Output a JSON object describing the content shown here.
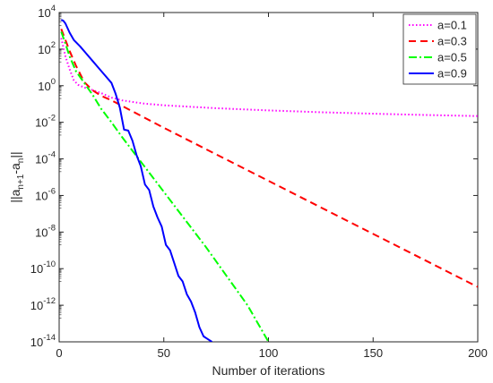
{
  "chart_data": {
    "type": "line",
    "title": "",
    "xlabel": "Number of iterations",
    "ylabel_main": "||a",
    "ylabel_sub1": "n+1",
    "ylabel_mid": "-a",
    "ylabel_sub2": "n",
    "ylabel_end": "||",
    "xlim": [
      0,
      200
    ],
    "ylim": [
      1e-14,
      10000.0
    ],
    "yscale": "log",
    "grid": false,
    "legend_position": "top-right",
    "x_ticks": [
      {
        "value": 0,
        "label": "0"
      },
      {
        "value": 50,
        "label": "50"
      },
      {
        "value": 100,
        "label": "100"
      },
      {
        "value": 150,
        "label": "150"
      },
      {
        "value": 200,
        "label": "200"
      }
    ],
    "y_ticks": [
      {
        "exp": 4,
        "base": "10",
        "sup": "4"
      },
      {
        "exp": 2,
        "base": "10",
        "sup": "2"
      },
      {
        "exp": 0,
        "base": "10",
        "sup": "0"
      },
      {
        "exp": -2,
        "base": "10",
        "sup": "-2"
      },
      {
        "exp": -4,
        "base": "10",
        "sup": "-4"
      },
      {
        "exp": -6,
        "base": "10",
        "sup": "-6"
      },
      {
        "exp": -8,
        "base": "10",
        "sup": "-8"
      },
      {
        "exp": -10,
        "base": "10",
        "sup": "-10"
      },
      {
        "exp": -12,
        "base": "10",
        "sup": "-12"
      },
      {
        "exp": -14,
        "base": "10",
        "sup": "-14"
      }
    ],
    "series": [
      {
        "name": "a=0.1",
        "color": "#ff00ff",
        "dash": "dotted",
        "x": [
          1,
          3,
          5,
          7,
          9,
          12,
          15,
          20,
          25,
          30,
          40,
          50,
          75,
          100,
          125,
          150,
          175,
          200
        ],
        "log10y": [
          2.6,
          1.6,
          0.9,
          0.3,
          0.05,
          -0.1,
          -0.2,
          -0.4,
          -0.65,
          -0.8,
          -0.97,
          -1.07,
          -1.23,
          -1.35,
          -1.45,
          -1.53,
          -1.6,
          -1.66
        ]
      },
      {
        "name": "a=0.3",
        "color": "#ff0000",
        "dash": "dashed",
        "x": [
          1,
          3,
          5,
          8,
          12,
          16,
          20,
          25,
          30,
          50,
          100,
          150,
          200
        ],
        "log10y": [
          3.1,
          2.5,
          1.9,
          1.1,
          0.2,
          -0.25,
          -0.55,
          -0.8,
          -1.1,
          -2.3,
          -5.2,
          -8.1,
          -11.0
        ]
      },
      {
        "name": "a=0.5",
        "color": "#00ff00",
        "dash": "dashdot",
        "x": [
          1,
          3,
          5,
          8,
          12,
          16,
          20,
          25,
          30,
          40,
          50,
          60,
          70,
          80,
          90,
          100
        ],
        "log10y": [
          2.95,
          2.3,
          1.6,
          0.8,
          0.15,
          -0.5,
          -1.25,
          -2.0,
          -2.8,
          -4.3,
          -5.8,
          -7.3,
          -8.8,
          -10.4,
          -12.0,
          -14.0
        ]
      },
      {
        "name": "a=0.9",
        "color": "#0000ff",
        "dash": "solid",
        "x": [
          1,
          2,
          3,
          5,
          7,
          10,
          13,
          16,
          19,
          22,
          25,
          27,
          29,
          31,
          33,
          35,
          37,
          39,
          41,
          43,
          45,
          47,
          49,
          51,
          53,
          55,
          57,
          59,
          61,
          63,
          65,
          67,
          69,
          71,
          73
        ],
        "log10y": [
          3.6,
          3.55,
          3.4,
          2.9,
          2.5,
          2.15,
          1.75,
          1.35,
          0.95,
          0.55,
          0.15,
          -0.45,
          -1.2,
          -2.4,
          -2.45,
          -3.0,
          -3.8,
          -4.4,
          -5.4,
          -5.7,
          -6.6,
          -7.2,
          -7.7,
          -8.7,
          -9.0,
          -9.7,
          -10.4,
          -10.7,
          -11.4,
          -11.8,
          -12.4,
          -13.2,
          -13.7,
          -13.85,
          -14.0
        ]
      }
    ]
  }
}
